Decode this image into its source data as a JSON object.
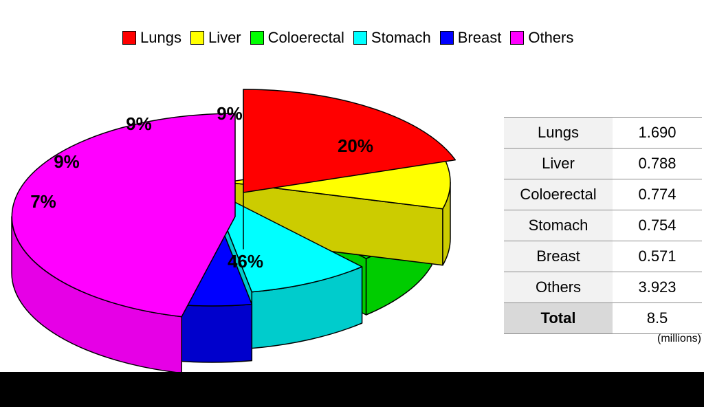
{
  "chart_data": {
    "type": "pie",
    "title": "",
    "legend": "top",
    "categories": [
      "Lungs",
      "Liver",
      "Coloerectal",
      "Stomach",
      "Breast",
      "Others"
    ],
    "percent_labels": [
      "20%",
      "9%",
      "9%",
      "9%",
      "7%",
      "46%"
    ],
    "values": [
      1.69,
      0.788,
      0.774,
      0.754,
      0.571,
      3.923
    ],
    "colors": [
      "#ff0000",
      "#ffff00",
      "#00ff00",
      "#00ffff",
      "#0000ff",
      "#ff00ff"
    ],
    "side_colors": [
      "#e60000",
      "#cccc00",
      "#00cc00",
      "#00cccc",
      "#0000cc",
      "#e600e6"
    ]
  },
  "table": {
    "rows": [
      {
        "label": "Lungs",
        "value": "1.690"
      },
      {
        "label": "Liver",
        "value": "0.788"
      },
      {
        "label": "Coloerectal",
        "value": "0.774"
      },
      {
        "label": "Stomach",
        "value": "0.754"
      },
      {
        "label": "Breast",
        "value": "0.571"
      },
      {
        "label": "Others",
        "value": "3.923"
      }
    ],
    "total_label": "Total",
    "total_value": "8.5",
    "units": "(millions)"
  }
}
